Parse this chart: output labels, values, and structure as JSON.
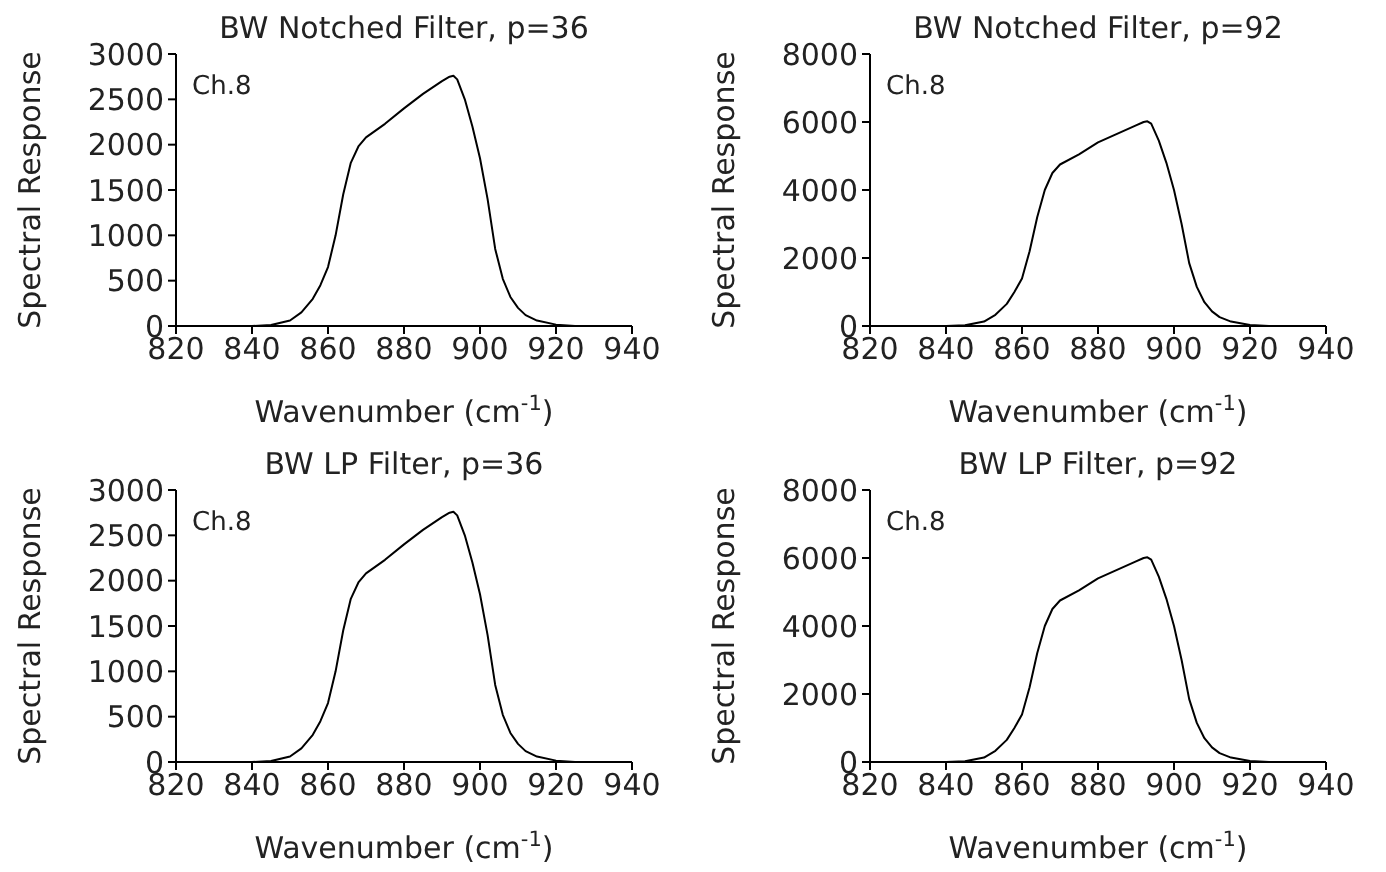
{
  "chart_data": [
    {
      "type": "line",
      "title": "BW Notched Filter, p=36",
      "xlabel": "Wavenumber (cm$^{-1}$)",
      "ylabel": "Spectral Response",
      "annotations": [
        "Ch.8"
      ],
      "color": "#000000",
      "x": [
        840,
        845,
        850,
        853,
        856,
        858,
        860,
        862,
        864,
        866,
        868,
        870,
        875,
        880,
        885,
        890,
        892,
        893,
        894,
        896,
        898,
        900,
        902,
        904,
        906,
        908,
        910,
        912,
        915,
        920,
        925,
        930
      ],
      "values": [
        0,
        10,
        60,
        150,
        300,
        450,
        650,
        1000,
        1450,
        1800,
        1980,
        2080,
        2230,
        2400,
        2560,
        2700,
        2750,
        2760,
        2720,
        2500,
        2200,
        1850,
        1400,
        850,
        520,
        320,
        200,
        120,
        60,
        15,
        0,
        0
      ],
      "xlim": [
        820,
        940
      ],
      "xticks": [
        820,
        840,
        860,
        880,
        900,
        920,
        940
      ],
      "ylim": [
        0,
        3000
      ],
      "yticks": [
        0,
        500,
        1000,
        1500,
        2000,
        2500,
        3000
      ]
    },
    {
      "type": "line",
      "title": "BW Notched Filter, p=92",
      "xlabel": "Wavenumber (cm$^{-1}$)",
      "ylabel": "Spectral Response",
      "annotations": [
        "Ch.8"
      ],
      "color": "#000000",
      "x": [
        840,
        845,
        850,
        853,
        856,
        858,
        860,
        862,
        864,
        866,
        868,
        870,
        875,
        880,
        885,
        890,
        892,
        893,
        894,
        896,
        898,
        900,
        902,
        904,
        906,
        908,
        910,
        912,
        915,
        920,
        925,
        930
      ],
      "values": [
        0,
        20,
        130,
        330,
        650,
        1000,
        1400,
        2200,
        3200,
        4000,
        4500,
        4750,
        5050,
        5400,
        5650,
        5900,
        6000,
        6020,
        5950,
        5450,
        4800,
        4000,
        3000,
        1850,
        1150,
        700,
        430,
        260,
        130,
        30,
        0,
        0
      ],
      "xlim": [
        820,
        940
      ],
      "xticks": [
        820,
        840,
        860,
        880,
        900,
        920,
        940
      ],
      "ylim": [
        0,
        8000
      ],
      "yticks": [
        0,
        2000,
        4000,
        6000,
        8000
      ]
    },
    {
      "type": "line",
      "title": "BW LP Filter, p=36",
      "xlabel": "Wavenumber (cm$^{-1}$)",
      "ylabel": "Spectral Response",
      "annotations": [
        "Ch.8"
      ],
      "color": "#000000",
      "x": [
        840,
        845,
        850,
        853,
        856,
        858,
        860,
        862,
        864,
        866,
        868,
        870,
        875,
        880,
        885,
        890,
        892,
        893,
        894,
        896,
        898,
        900,
        902,
        904,
        906,
        908,
        910,
        912,
        915,
        920,
        925,
        930
      ],
      "values": [
        0,
        10,
        60,
        150,
        300,
        450,
        650,
        1000,
        1450,
        1800,
        1980,
        2080,
        2230,
        2400,
        2560,
        2700,
        2750,
        2760,
        2720,
        2500,
        2200,
        1850,
        1400,
        850,
        520,
        320,
        200,
        120,
        60,
        15,
        0,
        0
      ],
      "xlim": [
        820,
        940
      ],
      "xticks": [
        820,
        840,
        860,
        880,
        900,
        920,
        940
      ],
      "ylim": [
        0,
        3000
      ],
      "yticks": [
        0,
        500,
        1000,
        1500,
        2000,
        2500,
        3000
      ]
    },
    {
      "type": "line",
      "title": "BW LP Filter, p=92",
      "xlabel": "Wavenumber (cm$^{-1}$)",
      "ylabel": "Spectral Response",
      "annotations": [
        "Ch.8"
      ],
      "color": "#000000",
      "x": [
        840,
        845,
        850,
        853,
        856,
        858,
        860,
        862,
        864,
        866,
        868,
        870,
        875,
        880,
        885,
        890,
        892,
        893,
        894,
        896,
        898,
        900,
        902,
        904,
        906,
        908,
        910,
        912,
        915,
        920,
        925,
        930
      ],
      "values": [
        0,
        20,
        130,
        330,
        650,
        1000,
        1400,
        2200,
        3200,
        4000,
        4500,
        4750,
        5050,
        5400,
        5650,
        5900,
        6000,
        6020,
        5950,
        5450,
        4800,
        4000,
        3000,
        1850,
        1150,
        700,
        430,
        260,
        130,
        30,
        0,
        0
      ],
      "xlim": [
        820,
        940
      ],
      "xticks": [
        820,
        840,
        860,
        880,
        900,
        920,
        940
      ],
      "ylim": [
        0,
        8000
      ],
      "yticks": [
        0,
        2000,
        4000,
        6000,
        8000
      ]
    }
  ]
}
